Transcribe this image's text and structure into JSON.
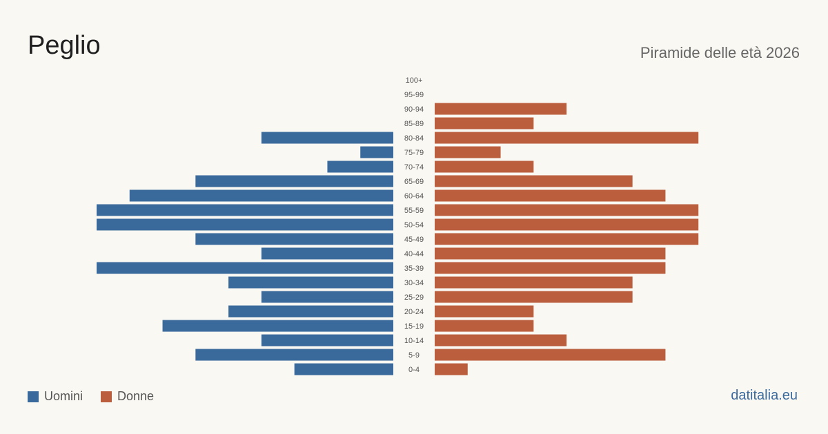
{
  "header": {
    "title": "Peglio",
    "subtitle": "Piramide delle età 2026"
  },
  "legend": {
    "men_label": "Uomini",
    "women_label": "Donne"
  },
  "footer": {
    "source": "datitalia.eu"
  },
  "colors": {
    "men": "#3a6a9c",
    "women": "#bb5e3e"
  },
  "chart_data": {
    "type": "bar",
    "orientation": "horizontal",
    "title": "Peglio",
    "subtitle": "Piramide delle età 2026",
    "categories": [
      "100+",
      "95-99",
      "90-94",
      "85-89",
      "80-84",
      "75-79",
      "70-74",
      "65-69",
      "60-64",
      "55-59",
      "50-54",
      "45-49",
      "40-44",
      "35-39",
      "30-34",
      "25-29",
      "20-24",
      "15-19",
      "10-14",
      "5-9",
      "0-4"
    ],
    "series": [
      {
        "name": "Uomini",
        "values": [
          0,
          0,
          0,
          0,
          4,
          1,
          2,
          6,
          8,
          9,
          9,
          6,
          4,
          9,
          5,
          4,
          5,
          7,
          4,
          6,
          3
        ]
      },
      {
        "name": "Donne",
        "values": [
          0,
          0,
          4,
          3,
          8,
          2,
          3,
          6,
          7,
          8,
          8,
          8,
          7,
          7,
          6,
          6,
          3,
          3,
          4,
          7,
          1
        ]
      }
    ],
    "xlim": [
      0,
      9
    ],
    "grid": false,
    "legend_position": "bottom-left"
  }
}
